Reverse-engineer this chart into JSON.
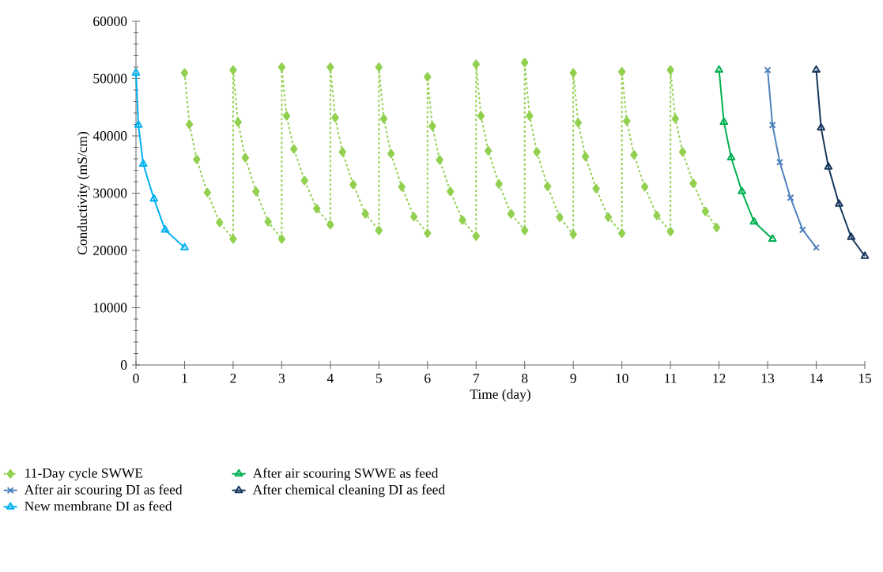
{
  "chart_data": {
    "type": "line",
    "xlabel": "Time (day)",
    "ylabel": "Conductivity (mS/cm)",
    "xlim": [
      0,
      15
    ],
    "xticks": [
      0,
      1,
      2,
      3,
      4,
      5,
      6,
      7,
      8,
      9,
      10,
      11,
      12,
      13,
      14,
      15
    ],
    "ylim": [
      0,
      60000
    ],
    "yticks": [
      0,
      10000,
      20000,
      30000,
      40000,
      50000,
      60000
    ],
    "legend": "bottom",
    "series": [
      {
        "name": "11-Day cycle SWWE",
        "color": "#92d050",
        "marker": "diamond",
        "line_style": "dashed",
        "x": [
          1,
          1.1,
          1.25,
          1.47,
          1.72,
          2,
          2,
          2.1,
          2.25,
          2.47,
          2.72,
          3,
          3,
          3.1,
          3.25,
          3.47,
          3.72,
          4,
          4,
          4.1,
          4.25,
          4.47,
          4.72,
          5,
          5,
          5.1,
          5.25,
          5.47,
          5.72,
          6,
          6,
          6.1,
          6.25,
          6.47,
          6.72,
          7,
          7,
          7.1,
          7.25,
          7.47,
          7.72,
          8,
          8,
          8.1,
          8.25,
          8.47,
          8.72,
          9,
          9,
          9.1,
          9.25,
          9.47,
          9.72,
          10,
          10,
          10.1,
          10.25,
          10.47,
          10.72,
          11,
          11,
          11.1,
          11.25,
          11.47,
          11.72,
          11.95
        ],
        "values": [
          51000,
          42000,
          35900,
          30100,
          24900,
          22000,
          51500,
          42400,
          36200,
          30300,
          25000,
          22000,
          52000,
          43500,
          37700,
          32200,
          27300,
          24500,
          52000,
          43200,
          37200,
          31500,
          26400,
          23500,
          52000,
          43000,
          36900,
          31100,
          25900,
          23000,
          50300,
          41700,
          35800,
          30300,
          25300,
          22500,
          52500,
          43500,
          37400,
          31600,
          26400,
          23500,
          52800,
          43500,
          37200,
          31200,
          25800,
          22800,
          51000,
          42300,
          36400,
          30800,
          25800,
          23000,
          51200,
          42600,
          36700,
          31100,
          26100,
          23300,
          51500,
          43000,
          37200,
          31700,
          26800,
          24000
        ]
      },
      {
        "name": "After air scouring SWWE as feed",
        "color": "#00b050",
        "marker": "triangle",
        "line_style": "solid",
        "x": [
          12,
          12.1,
          12.25,
          12.47,
          12.72,
          13.1
        ],
        "values": [
          51500,
          42400,
          36200,
          30300,
          25000,
          22000
        ]
      },
      {
        "name": "After air scouring DI as feed",
        "color": "#4f81bd",
        "marker": "cross",
        "line_style": "solid",
        "x": [
          13,
          13.1,
          13.25,
          13.47,
          13.72,
          14
        ],
        "values": [
          51500,
          41900,
          35400,
          29200,
          23600,
          20500
        ]
      },
      {
        "name": "After chemical cleaning DI as feed",
        "color": "#17375e",
        "marker": "triangle",
        "line_style": "solid",
        "x": [
          14,
          14.1,
          14.25,
          14.47,
          14.72,
          15
        ],
        "values": [
          51500,
          41400,
          34600,
          28100,
          22300,
          19000
        ]
      },
      {
        "name": "New membrane DI as feed",
        "color": "#00b0f0",
        "marker": "triangle",
        "line_style": "solid",
        "x": [
          0,
          0.05,
          0.15,
          0.37,
          0.6,
          1
        ],
        "values": [
          51000,
          41900,
          35100,
          29000,
          23600,
          20500
        ]
      }
    ]
  }
}
